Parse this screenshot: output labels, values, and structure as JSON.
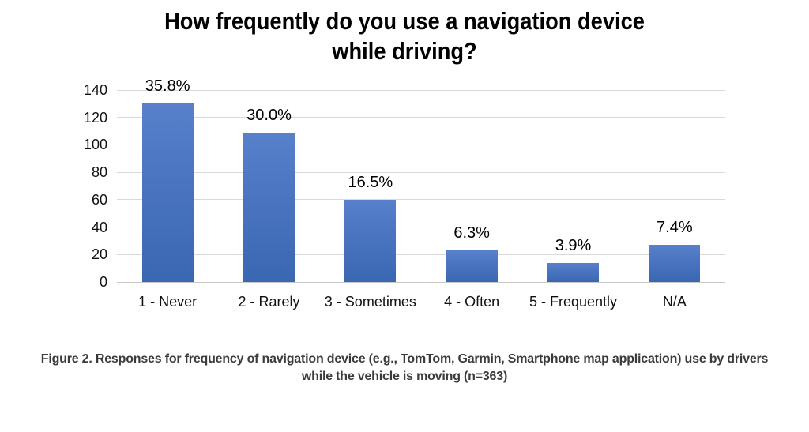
{
  "title": {
    "line1": "How frequently do you use a navigation device",
    "line2": "while driving?"
  },
  "caption": {
    "line1": "Figure 2. Responses for frequency of navigation device (e.g., TomTom, Garmin, Smartphone map application) use by drivers",
    "line2": "while the vehicle is moving (n=363)"
  },
  "chart_data": {
    "type": "bar",
    "title": "How frequently do you use a navigation device while driving?",
    "categories": [
      "1 - Never",
      "2 - Rarely",
      "3 - Sometimes",
      "4 - Often",
      "5 - Frequently",
      "N/A"
    ],
    "values": [
      130,
      109,
      60,
      23,
      14,
      27
    ],
    "data_labels": [
      "35.8%",
      "30.0%",
      "16.5%",
      "6.3%",
      "3.9%",
      "7.4%"
    ],
    "n": 363,
    "xlabel": "",
    "ylabel": "",
    "ylim": [
      0,
      140
    ],
    "yticks": [
      0,
      20,
      40,
      60,
      80,
      100,
      120,
      140
    ],
    "grid": true,
    "legend": false,
    "bar_color_top": "#5880cb",
    "bar_color_bottom": "#3a67b2",
    "gridline_color": "#d9d9d9"
  }
}
